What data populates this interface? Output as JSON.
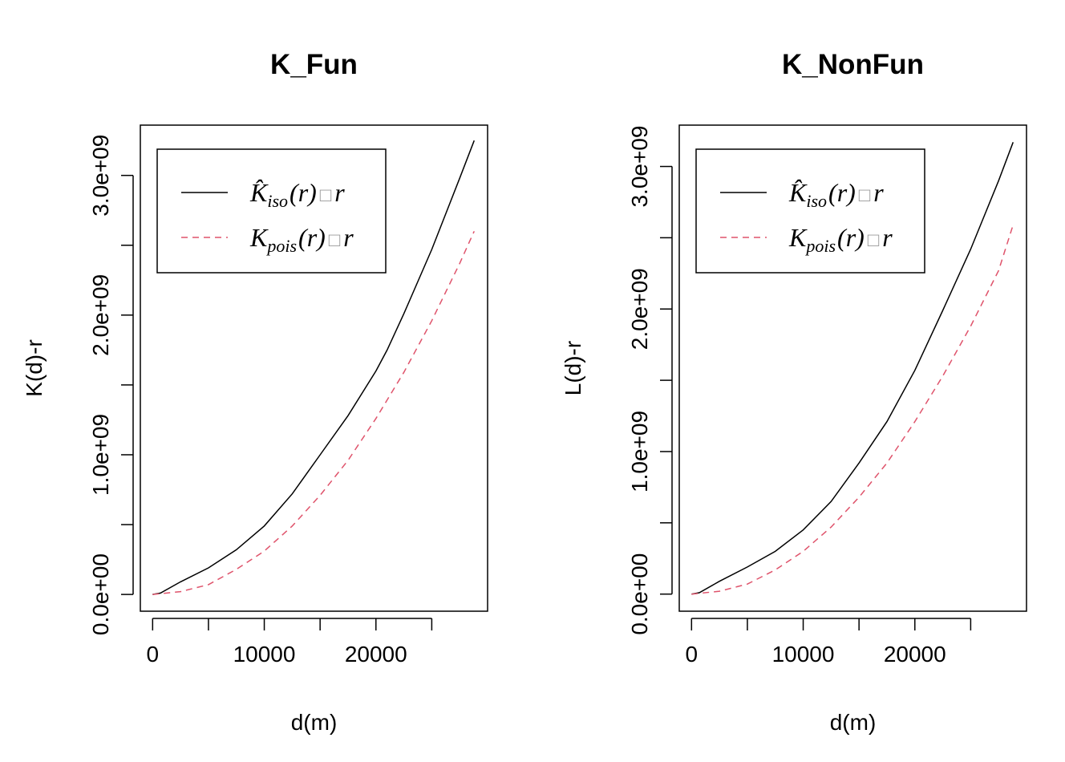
{
  "chart_data": [
    {
      "type": "line",
      "title": "K_Fun",
      "xlabel": "d(m)",
      "ylabel": "K(d)-r",
      "xlim": [
        -1100,
        30000
      ],
      "ylim": [
        -120000000,
        3360000000
      ],
      "x_ticks": [
        0,
        5000,
        10000,
        15000,
        20000,
        25000
      ],
      "x_tick_labels": [
        "0",
        "",
        "10000",
        "",
        "20000",
        ""
      ],
      "y_ticks": [
        0,
        500000000,
        1000000000,
        1500000000,
        2000000000,
        2500000000,
        3000000000
      ],
      "y_tick_labels": [
        "0.0e+00",
        "",
        "1.0e+09",
        "",
        "2.0e+09",
        "",
        "3.0e+09"
      ],
      "grid": false,
      "legend": {
        "position": "top-left",
        "entries": [
          {
            "name": "K_iso(r) − r",
            "main": "K̂",
            "sub": "iso",
            "rest": "(r)",
            "box": "□",
            "tail": "r",
            "color": "#000000",
            "dash": "none"
          },
          {
            "name": "K_pois(r) − r",
            "main": "K",
            "sub": "pois",
            "rest": "(r)",
            "box": "□",
            "tail": "r",
            "color": "#df536b",
            "dash": "8,6"
          }
        ]
      },
      "series": [
        {
          "color": "#000000",
          "dash": "none",
          "x": [
            0,
            700,
            2500,
            5000,
            7500,
            10000,
            12500,
            15000,
            17500,
            20000,
            21000,
            22500,
            25000,
            27500,
            28800
          ],
          "y": [
            0,
            10000000,
            90000000,
            190000000,
            320000000,
            490000000,
            720000000,
            1000000000,
            1280000000,
            1600000000,
            1750000000,
            2010000000,
            2470000000,
            2980000000,
            3250000000
          ]
        },
        {
          "color": "#df536b",
          "dash": "8,6",
          "x": [
            0,
            2500,
            5000,
            7500,
            10000,
            12500,
            15000,
            17500,
            20000,
            22500,
            25000,
            27500,
            28800
          ],
          "y": [
            0,
            20000000,
            70000000,
            180000000,
            310000000,
            490000000,
            710000000,
            960000000,
            1260000000,
            1590000000,
            1960000000,
            2370000000,
            2600000000
          ]
        }
      ]
    },
    {
      "type": "line",
      "title": "K_NonFun",
      "xlabel": "d(m)",
      "ylabel": "L(d)-r",
      "xlim": [
        -1100,
        30000
      ],
      "ylim": [
        -120000000,
        3290000000
      ],
      "x_ticks": [
        0,
        5000,
        10000,
        15000,
        20000,
        25000
      ],
      "x_tick_labels": [
        "0",
        "",
        "10000",
        "",
        "20000",
        ""
      ],
      "y_ticks": [
        0,
        500000000,
        1000000000,
        1500000000,
        2000000000,
        2500000000,
        3000000000
      ],
      "y_tick_labels": [
        "0.0e+00",
        "",
        "1.0e+09",
        "",
        "2.0e+09",
        "",
        "3.0e+09"
      ],
      "grid": false,
      "legend": {
        "position": "top-left",
        "entries": [
          {
            "name": "K_iso(r) − r",
            "main": "K̂",
            "sub": "iso",
            "rest": "(r)",
            "box": "□",
            "tail": "r",
            "color": "#000000",
            "dash": "none"
          },
          {
            "name": "K_pois(r) − r",
            "main": "K",
            "sub": "pois",
            "rest": "(r)",
            "box": "□",
            "tail": "r",
            "color": "#df536b",
            "dash": "8,6"
          }
        ]
      },
      "series": [
        {
          "color": "#000000",
          "dash": "none",
          "x": [
            0,
            700,
            2500,
            5000,
            7500,
            10000,
            12500,
            15000,
            17500,
            20000,
            22500,
            25000,
            27500,
            28800
          ],
          "y": [
            0,
            10000000,
            90000000,
            190000000,
            300000000,
            450000000,
            650000000,
            920000000,
            1210000000,
            1570000000,
            1990000000,
            2420000000,
            2900000000,
            3170000000
          ]
        },
        {
          "color": "#df536b",
          "dash": "8,6",
          "x": [
            0,
            2500,
            5000,
            7500,
            10000,
            12500,
            15000,
            17500,
            20000,
            22500,
            25000,
            27500,
            28800
          ],
          "y": [
            0,
            20000000,
            70000000,
            170000000,
            300000000,
            470000000,
            680000000,
            920000000,
            1210000000,
            1530000000,
            1880000000,
            2270000000,
            2590000000
          ]
        }
      ]
    }
  ]
}
